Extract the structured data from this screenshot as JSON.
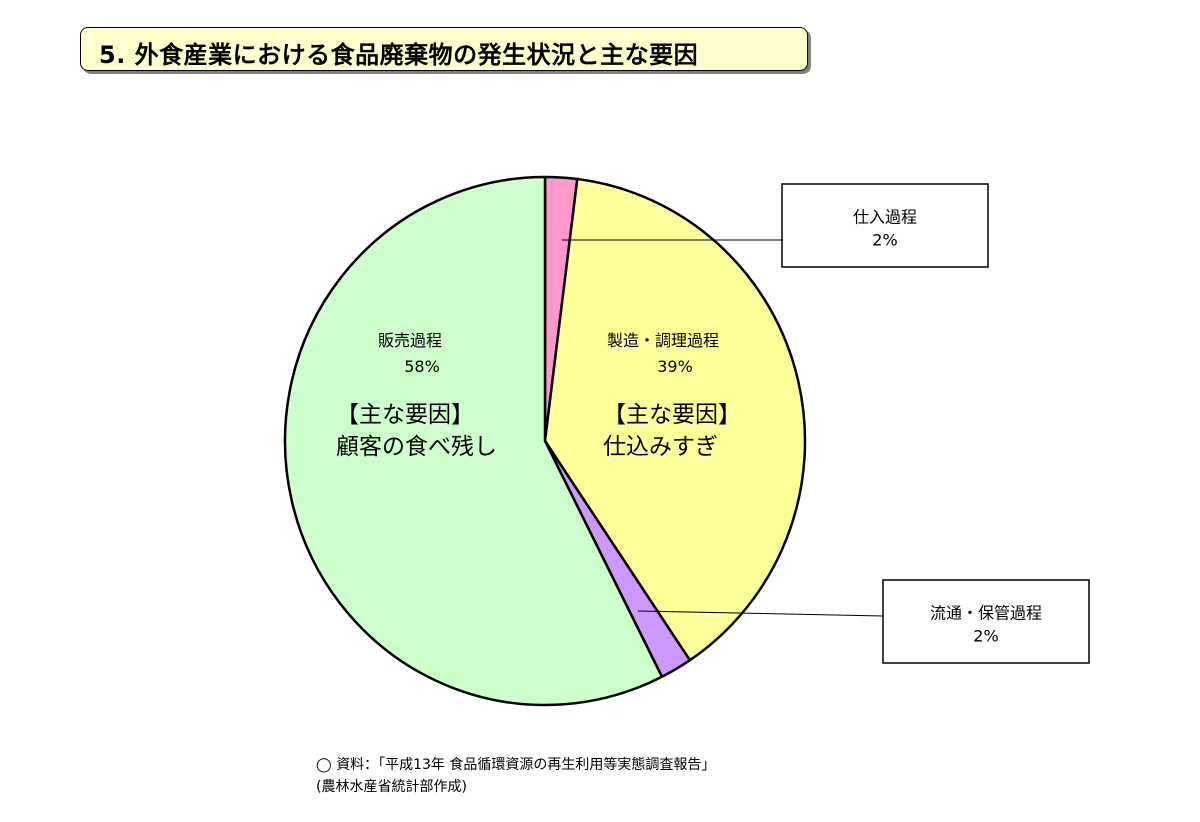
{
  "title": "5. 外食産業における食品廃棄物の発生状況と主な要因",
  "chart_data": {
    "type": "pie",
    "slices": [
      {
        "label": "仕入過程",
        "value_label": "2%",
        "value": 2,
        "color": "#ff99cc"
      },
      {
        "label": "製造・調理過程",
        "value_label": "39%",
        "value": 39,
        "color": "#ffff99",
        "cause_heading": "【主な要因】",
        "cause": "仕込みすぎ"
      },
      {
        "label": "流通・保管過程",
        "value_label": "2%",
        "value": 2,
        "color": "#cc99ff"
      },
      {
        "label": "販売過程",
        "value_label": "58%",
        "value": 58,
        "color": "#ccffcc",
        "cause_heading": "【主な要因】",
        "cause": "顧客の食べ残し"
      }
    ]
  },
  "footer": {
    "line1": "◯ 資料：「平成13年 食品循環資源の再生利用等実態調査報告」",
    "line2": "(農林水産省統計部作成)"
  }
}
